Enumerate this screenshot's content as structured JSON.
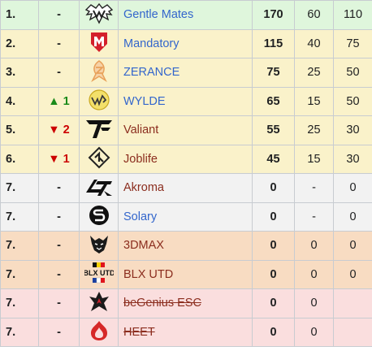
{
  "row_colors": {
    "green": "#dff6dc",
    "yellow": "#faf2ca",
    "grey": "#f2f2f2",
    "orange": "#f8dcc2",
    "pink": "#fadede"
  },
  "rows": [
    {
      "place": "1.",
      "change_arrow": "",
      "change_value": "-",
      "logo_icon": "gentle-mates-logo-icon",
      "team": "Gentle Mates",
      "points": "170",
      "col1": "60",
      "col2": "110"
    },
    {
      "place": "2.",
      "change_arrow": "",
      "change_value": "-",
      "logo_icon": "mandatory-logo-icon",
      "team": "Mandatory",
      "points": "115",
      "col1": "40",
      "col2": "75"
    },
    {
      "place": "3.",
      "change_arrow": "",
      "change_value": "-",
      "logo_icon": "zerance-logo-icon",
      "team": "ZERANCE",
      "points": "75",
      "col1": "25",
      "col2": "50"
    },
    {
      "place": "4.",
      "change_arrow": "▲",
      "change_value": "1",
      "logo_icon": "wylde-logo-icon",
      "team": "WYLDE",
      "points": "65",
      "col1": "15",
      "col2": "50"
    },
    {
      "place": "5.",
      "change_arrow": "▼",
      "change_value": "2",
      "logo_icon": "valiant-logo-icon",
      "team": "Valiant",
      "points": "55",
      "col1": "25",
      "col2": "30"
    },
    {
      "place": "6.",
      "change_arrow": "▼",
      "change_value": "1",
      "logo_icon": "joblife-logo-icon",
      "team": "Joblife",
      "points": "45",
      "col1": "15",
      "col2": "30"
    },
    {
      "place": "7.",
      "change_arrow": "",
      "change_value": "-",
      "logo_icon": "akroma-logo-icon",
      "team": "Akroma",
      "points": "0",
      "col1": "-",
      "col2": "0"
    },
    {
      "place": "7.",
      "change_arrow": "",
      "change_value": "-",
      "logo_icon": "solary-logo-icon",
      "team": "Solary",
      "points": "0",
      "col1": "-",
      "col2": "0"
    },
    {
      "place": "7.",
      "change_arrow": "",
      "change_value": "-",
      "logo_icon": "3dmax-logo-icon",
      "team": "3DMAX",
      "points": "0",
      "col1": "0",
      "col2": "0"
    },
    {
      "place": "7.",
      "change_arrow": "",
      "change_value": "-",
      "logo_icon": "blx-utd-logo-icon",
      "team": "BLX UTD",
      "logo_text": "BLX UTD",
      "points": "0",
      "col1": "0",
      "col2": "0"
    },
    {
      "place": "7.",
      "change_arrow": "",
      "change_value": "-",
      "logo_icon": "begenius-esc-logo-icon",
      "team": "beGenius ESC",
      "points": "0",
      "col1": "0",
      "col2": ""
    },
    {
      "place": "7.",
      "change_arrow": "",
      "change_value": "-",
      "logo_icon": "heet-logo-icon",
      "team": "HEET",
      "points": "0",
      "col1": "0",
      "col2": ""
    }
  ]
}
